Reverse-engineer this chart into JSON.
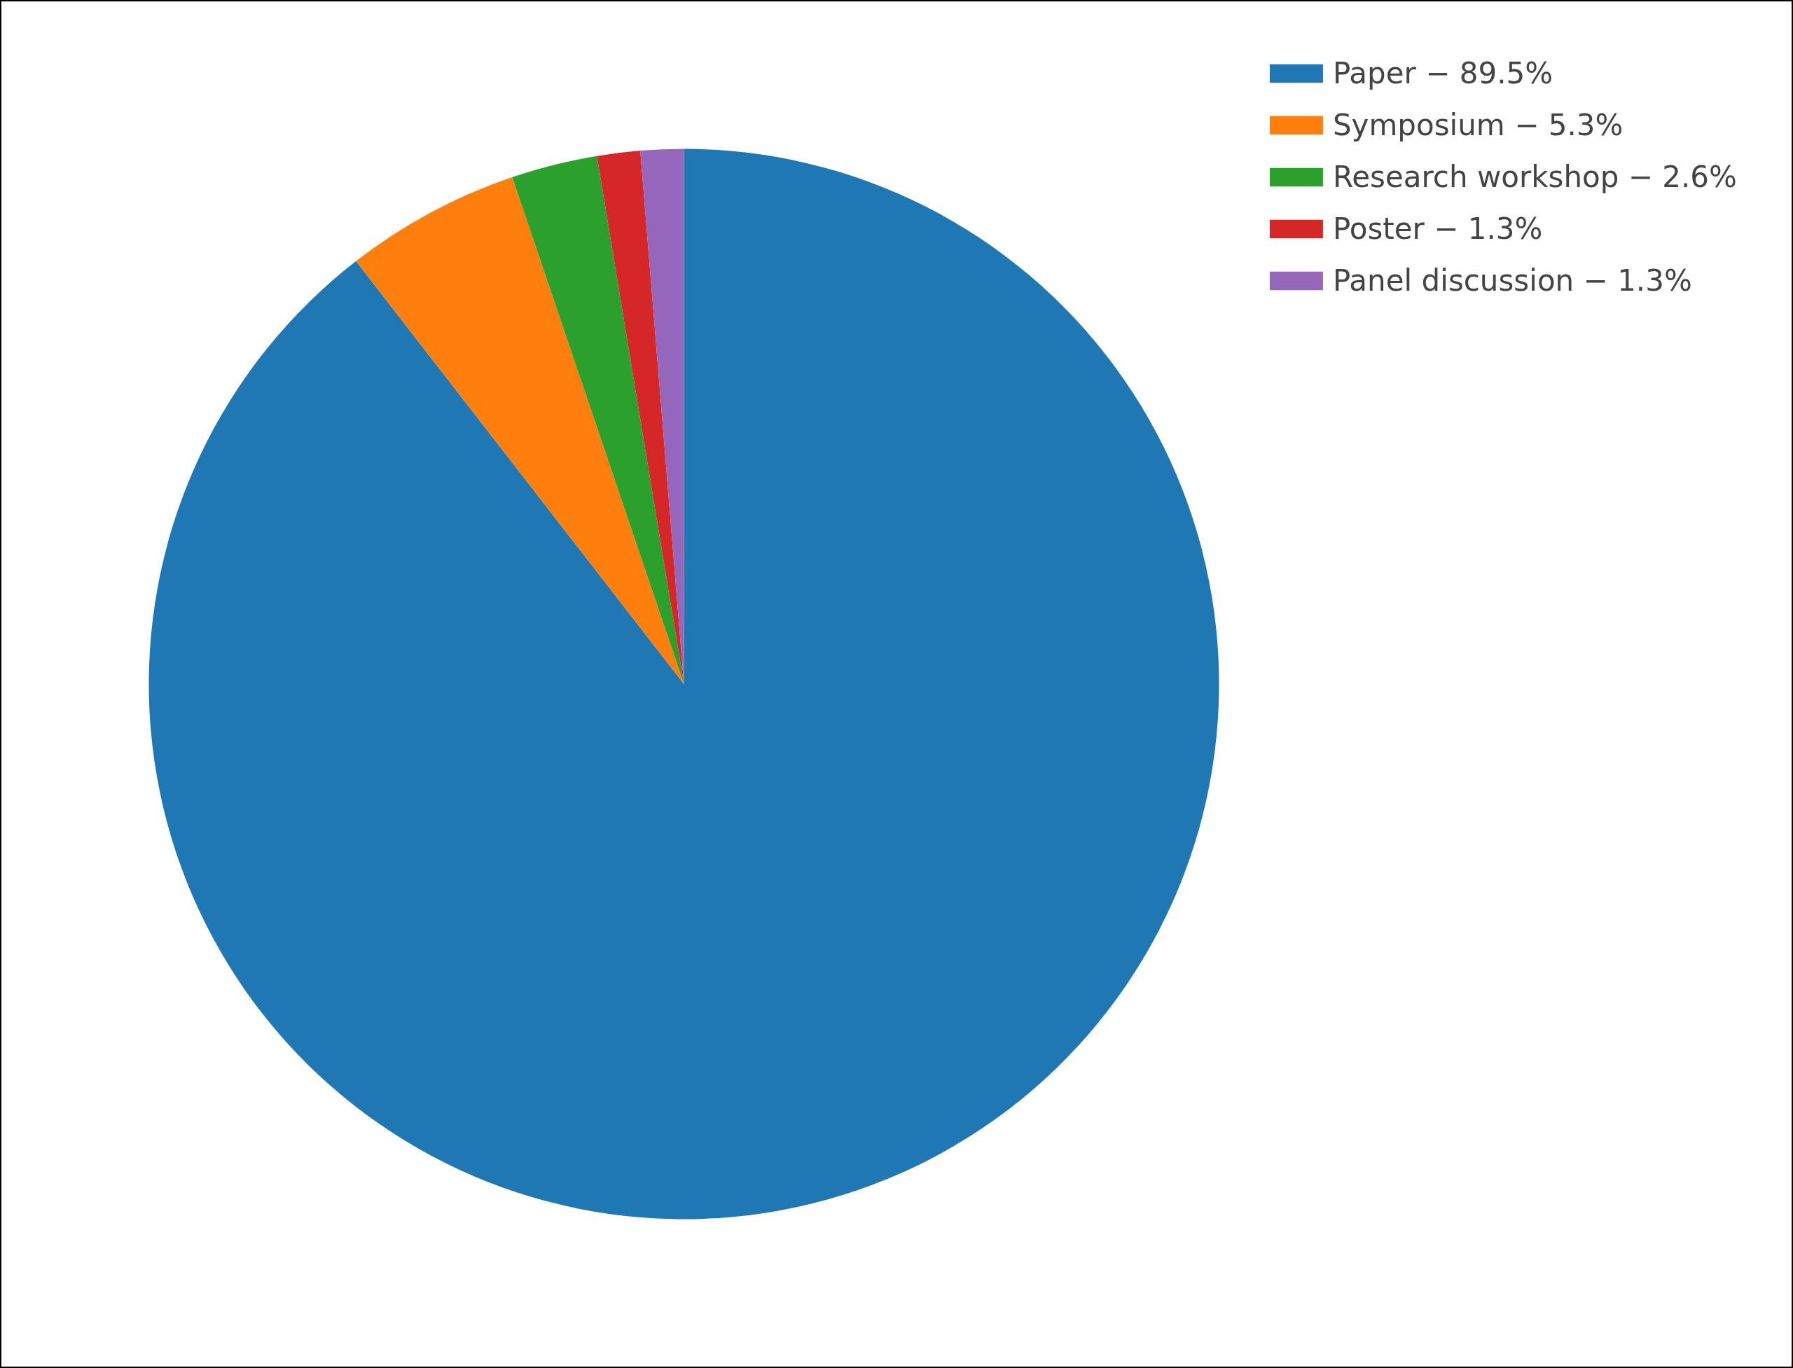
{
  "chart_data": {
    "type": "pie",
    "categories": [
      "Paper − 89.5%",
      "Symposium − 5.3%",
      "Research workshop − 2.6%",
      "Poster − 1.3%",
      "Panel discussion − 1.3%"
    ],
    "values": [
      89.5,
      5.3,
      2.6,
      1.3,
      1.3
    ],
    "colors": [
      "#1f77b4",
      "#ff7f0e",
      "#2ca02c",
      "#d62728",
      "#9467bd"
    ],
    "legend": "top right"
  }
}
